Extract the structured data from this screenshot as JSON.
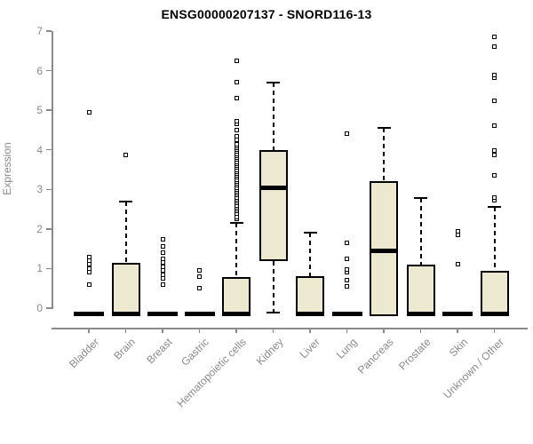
{
  "title": "ENSG00000207137 - SNORD116-13",
  "colors": {
    "box_fill": "#EDE8D0",
    "box_border": "#000000",
    "axis_color": "#8a8a8a",
    "text_gray": "#8a8a8a",
    "title_color": "#000000",
    "background": "#ffffff"
  },
  "chart_data": {
    "type": "boxplot",
    "title": "ENSG00000207137 - SNORD116-13",
    "xlabel": "",
    "ylabel": "Expression",
    "ylim": [
      0,
      7
    ],
    "yticks": [
      0,
      1,
      2,
      3,
      4,
      5,
      6,
      7
    ],
    "grid": false,
    "legend": "none",
    "categories": [
      "Bladder",
      "Brain",
      "Breast",
      "Gastric",
      "Hematopoietic cells",
      "Kidney",
      "Liver",
      "Lung",
      "Pancreas",
      "Prostate",
      "Skin",
      "Unknown / Other"
    ],
    "boxes": [
      {
        "category": "Bladder",
        "min": 0,
        "q1": 0,
        "median": 0,
        "q3": 0,
        "max": 0,
        "outliers": [
          0.6,
          0.9,
          1.0,
          1.1,
          1.2,
          1.3,
          4.95
        ]
      },
      {
        "category": "Brain",
        "min": 0,
        "q1": 0,
        "median": 0.02,
        "q3": 1.15,
        "max": 2.7,
        "outliers": [
          3.87
        ]
      },
      {
        "category": "Breast",
        "min": 0,
        "q1": 0,
        "median": 0,
        "q3": 0,
        "max": 0,
        "outliers": [
          0.6,
          0.75,
          0.85,
          0.95,
          1.05,
          1.15,
          1.25,
          1.4,
          1.55,
          1.75
        ]
      },
      {
        "category": "Gastric",
        "min": 0,
        "q1": 0,
        "median": 0,
        "q3": 0,
        "max": 0,
        "outliers": [
          0.5,
          0.8,
          0.95
        ]
      },
      {
        "category": "Hematopoietic cells",
        "min": 0,
        "q1": 0,
        "median": 0.02,
        "q3": 0.78,
        "max": 2.15,
        "outliers": [
          2.25,
          2.3,
          2.4,
          2.45,
          2.5,
          2.55,
          2.6,
          2.65,
          2.7,
          2.75,
          2.8,
          2.85,
          2.9,
          2.95,
          3.0,
          3.05,
          3.1,
          3.15,
          3.2,
          3.25,
          3.3,
          3.35,
          3.4,
          3.45,
          3.5,
          3.55,
          3.6,
          3.65,
          3.7,
          3.75,
          3.8,
          3.85,
          3.9,
          3.95,
          4.0,
          4.05,
          4.1,
          4.15,
          4.25,
          4.35,
          4.5,
          4.65,
          4.72,
          5.3,
          5.7,
          6.25
        ]
      },
      {
        "category": "Kidney",
        "min": 0,
        "q1": 1.2,
        "median": 3.05,
        "q3": 4.0,
        "max": 5.7,
        "outliers": []
      },
      {
        "category": "Liver",
        "min": 0,
        "q1": 0,
        "median": 0.02,
        "q3": 0.8,
        "max": 1.9,
        "outliers": []
      },
      {
        "category": "Lung",
        "min": 0,
        "q1": 0,
        "median": 0,
        "q3": 0,
        "max": 0,
        "outliers": [
          0.55,
          0.7,
          0.9,
          0.98,
          1.25,
          1.65,
          4.4
        ]
      },
      {
        "category": "Pancreas",
        "min": 0,
        "q1": 0.02,
        "median": 1.45,
        "q3": 3.2,
        "max": 4.55,
        "outliers": []
      },
      {
        "category": "Prostate",
        "min": 0,
        "q1": 0,
        "median": 0.02,
        "q3": 1.1,
        "max": 2.78,
        "outliers": []
      },
      {
        "category": "Skin",
        "min": 0,
        "q1": 0,
        "median": 0,
        "q3": 0,
        "max": 0,
        "outliers": [
          1.1,
          1.85,
          1.95
        ]
      },
      {
        "category": "Unknown / Other",
        "min": 0,
        "q1": 0,
        "median": 0.02,
        "q3": 0.95,
        "max": 2.55,
        "outliers": [
          2.72,
          2.8,
          3.35,
          3.88,
          3.98,
          4.6,
          5.25,
          5.82,
          5.9,
          6.6,
          6.85
        ]
      }
    ]
  }
}
